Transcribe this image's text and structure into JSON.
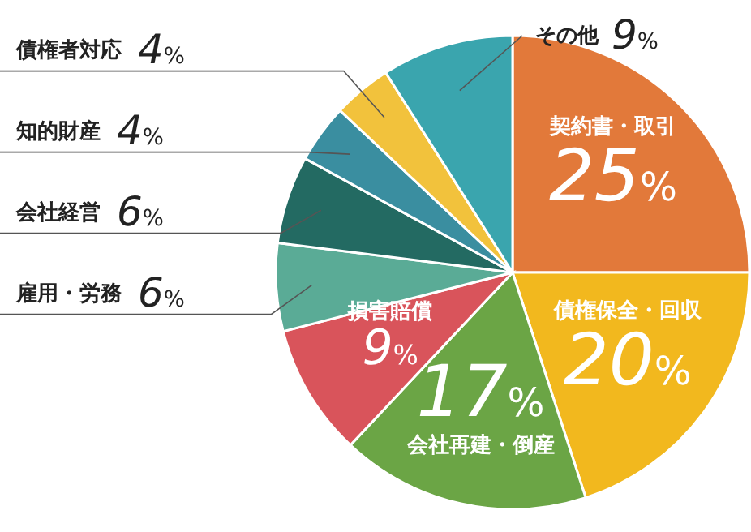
{
  "chart_data": {
    "type": "pie",
    "categories": [
      "契約書・取引",
      "債権保全・回収",
      "会社再建・倒産",
      "損害賠償",
      "雇用・労務",
      "会社経営",
      "知的財産",
      "債権者対応",
      "その他"
    ],
    "values": [
      25,
      20,
      17,
      9,
      6,
      6,
      4,
      4,
      9
    ],
    "value_labels": [
      "25%",
      "20%",
      "17%",
      "9%",
      "6%",
      "6%",
      "4%",
      "4%",
      "9%"
    ],
    "colors": [
      "#e2793a",
      "#f2b81e",
      "#6ba545",
      "#d9545b",
      "#5aab96",
      "#236a62",
      "#3a8ea0",
      "#f2c23c",
      "#3aa5ae"
    ]
  }
}
